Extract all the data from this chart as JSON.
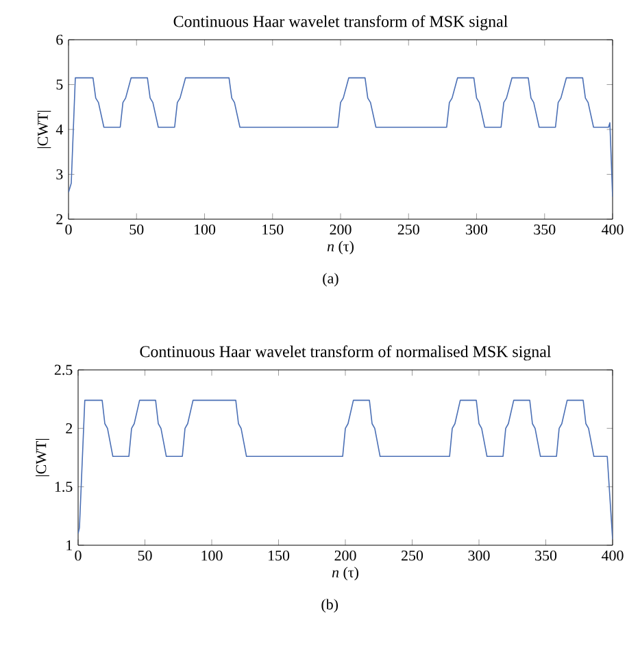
{
  "chart_data": [
    {
      "type": "line",
      "title": "Continuous Haar wavelet transform of MSK signal",
      "xlabel": "*n* (τ)",
      "ylabel": "|CWT|",
      "annotations": [
        "(a)"
      ],
      "xlim": [
        0,
        400
      ],
      "ylim": [
        2,
        6
      ],
      "xticks": [
        0,
        50,
        100,
        150,
        200,
        250,
        300,
        350,
        400
      ],
      "yticks": [
        2,
        3,
        4,
        5,
        6
      ],
      "grid": false,
      "marker": "none",
      "line_style": "solid",
      "series": [
        {
          "color": "#4a6fb5",
          "x": [
            0,
            2,
            5,
            18,
            20,
            22,
            26,
            38,
            40,
            42,
            46,
            58,
            60,
            62,
            66,
            78,
            80,
            82,
            86,
            118,
            120,
            122,
            126,
            198,
            200,
            202,
            206,
            218,
            220,
            222,
            226,
            278,
            280,
            282,
            286,
            298,
            300,
            302,
            306,
            318,
            320,
            322,
            326,
            338,
            340,
            342,
            346,
            358,
            360,
            362,
            366,
            378,
            380,
            382,
            386,
            397,
            398,
            400
          ],
          "values": [
            2.6,
            2.8,
            5.15,
            5.15,
            4.7,
            4.6,
            4.05,
            4.05,
            4.6,
            4.7,
            5.15,
            5.15,
            4.7,
            4.6,
            4.05,
            4.05,
            4.6,
            4.7,
            5.15,
            5.15,
            4.7,
            4.6,
            4.05,
            4.05,
            4.6,
            4.7,
            5.15,
            5.15,
            4.7,
            4.6,
            4.05,
            4.05,
            4.6,
            4.7,
            5.15,
            5.15,
            4.7,
            4.6,
            4.05,
            4.05,
            4.6,
            4.7,
            5.15,
            5.15,
            4.7,
            4.6,
            4.05,
            4.05,
            4.6,
            4.7,
            5.15,
            5.15,
            4.7,
            4.6,
            4.05,
            4.05,
            4.15,
            2.5
          ]
        }
      ]
    },
    {
      "type": "line",
      "title": "Continuous Haar wavelet transform of normalised MSK signal",
      "xlabel": "*n* (τ)",
      "ylabel": "|CWT|",
      "annotations": [
        "(b)"
      ],
      "xlim": [
        0,
        400
      ],
      "ylim": [
        1,
        2.5
      ],
      "xticks": [
        0,
        50,
        100,
        150,
        200,
        250,
        300,
        350,
        400
      ],
      "yticks": [
        1,
        1.5,
        2,
        2.5
      ],
      "grid": false,
      "marker": "none",
      "line_style": "solid",
      "series": [
        {
          "color": "#4a6fb5",
          "x": [
            0,
            1,
            5,
            18,
            20,
            22,
            26,
            38,
            40,
            42,
            46,
            58,
            60,
            62,
            66,
            78,
            80,
            82,
            86,
            118,
            120,
            122,
            126,
            198,
            200,
            202,
            206,
            218,
            220,
            222,
            226,
            278,
            280,
            282,
            286,
            298,
            300,
            302,
            306,
            318,
            320,
            322,
            326,
            338,
            340,
            342,
            346,
            358,
            360,
            362,
            366,
            378,
            380,
            382,
            386,
            396,
            400
          ],
          "values": [
            1.1,
            1.15,
            2.24,
            2.24,
            2.04,
            2.0,
            1.76,
            1.76,
            2.0,
            2.04,
            2.24,
            2.24,
            2.04,
            2.0,
            1.76,
            1.76,
            2.0,
            2.04,
            2.24,
            2.24,
            2.04,
            2.0,
            1.76,
            1.76,
            2.0,
            2.04,
            2.24,
            2.24,
            2.04,
            2.0,
            1.76,
            1.76,
            2.0,
            2.04,
            2.24,
            2.24,
            2.04,
            2.0,
            1.76,
            1.76,
            2.0,
            2.04,
            2.24,
            2.24,
            2.04,
            2.0,
            1.76,
            1.76,
            2.0,
            2.04,
            2.24,
            2.24,
            2.04,
            2.0,
            1.76,
            1.76,
            1.05
          ]
        }
      ]
    }
  ]
}
